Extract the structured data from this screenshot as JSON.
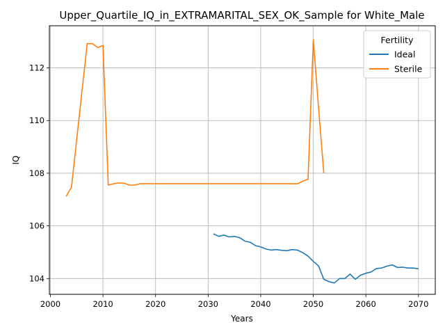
{
  "chart_data": {
    "type": "line",
    "title": "Upper_Quartile_IQ_in_EXTRAMARITAL_SEX_OK_Sample for White_Male",
    "xlabel": "Years",
    "ylabel": "IQ",
    "xlim": [
      1999.8,
      2073.2
    ],
    "ylim": [
      103.4,
      113.6
    ],
    "xticks": [
      2000,
      2010,
      2020,
      2030,
      2040,
      2050,
      2060,
      2070
    ],
    "yticks": [
      104,
      106,
      108,
      110,
      112
    ],
    "grid": true,
    "legend": {
      "title": "Fertility",
      "position": "top-right"
    },
    "series": [
      {
        "name": "Ideal",
        "color": "#1f77b4",
        "x": [
          2031,
          2032,
          2033,
          2034,
          2035,
          2036,
          2037,
          2038,
          2039,
          2040,
          2041,
          2042,
          2043,
          2044,
          2045,
          2046,
          2047,
          2048,
          2049,
          2050,
          2051,
          2052,
          2053,
          2054,
          2055,
          2056,
          2057,
          2058,
          2059,
          2060,
          2061,
          2062,
          2063,
          2064,
          2065,
          2066,
          2067,
          2068,
          2069,
          2070
        ],
        "y": [
          105.7,
          105.6,
          105.65,
          105.58,
          105.6,
          105.55,
          105.42,
          105.38,
          105.25,
          105.2,
          105.12,
          105.08,
          105.1,
          105.07,
          105.06,
          105.1,
          105.08,
          104.98,
          104.85,
          104.65,
          104.48,
          103.97,
          103.88,
          103.83,
          104.0,
          104.0,
          104.17,
          103.97,
          104.13,
          104.2,
          104.25,
          104.38,
          104.4,
          104.47,
          104.52,
          104.42,
          104.43,
          104.4,
          104.4,
          104.37
        ]
      },
      {
        "name": "Sterile",
        "color": "#ff7f0e",
        "x": [
          2003,
          2004,
          2007,
          2008,
          2009,
          2010,
          2011,
          2012,
          2013,
          2014,
          2015,
          2016,
          2017,
          2020,
          2030,
          2040,
          2047,
          2048,
          2049,
          2050,
          2051,
          2052
        ],
        "y": [
          107.12,
          107.47,
          112.92,
          112.92,
          112.77,
          112.85,
          107.55,
          107.6,
          107.63,
          107.62,
          107.55,
          107.55,
          107.6,
          107.6,
          107.6,
          107.6,
          107.6,
          107.7,
          107.77,
          113.07,
          110.5,
          108.0
        ]
      }
    ]
  }
}
